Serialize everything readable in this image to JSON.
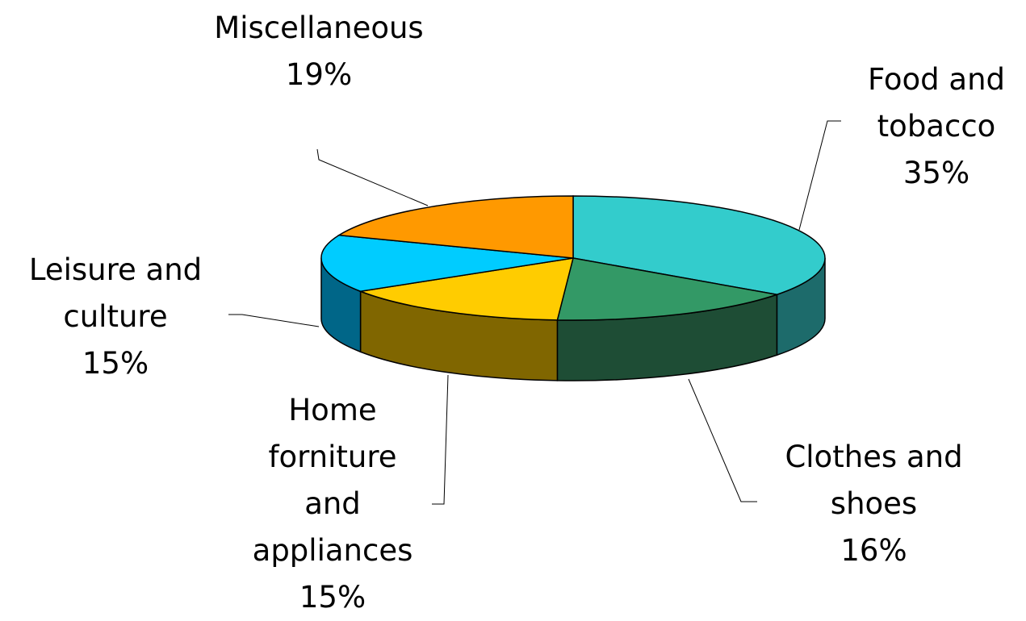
{
  "chart_data": {
    "type": "pie",
    "categories": [
      "Food and tobacco",
      "Clothes and shoes",
      "Home forniture and appliances",
      "Leisure and culture",
      "Miscellaneous"
    ],
    "values": [
      35,
      16,
      15,
      15,
      19
    ],
    "value_labels": [
      "35%",
      "16%",
      "15%",
      "15%",
      "19%"
    ],
    "colors": [
      "#33cccc",
      "#339966",
      "#ffcc00",
      "#00ccff",
      "#ff9900"
    ],
    "side_colors": [
      "#1d6b6b",
      "#1e4d35",
      "#806600",
      "#006688",
      "#805000"
    ]
  }
}
